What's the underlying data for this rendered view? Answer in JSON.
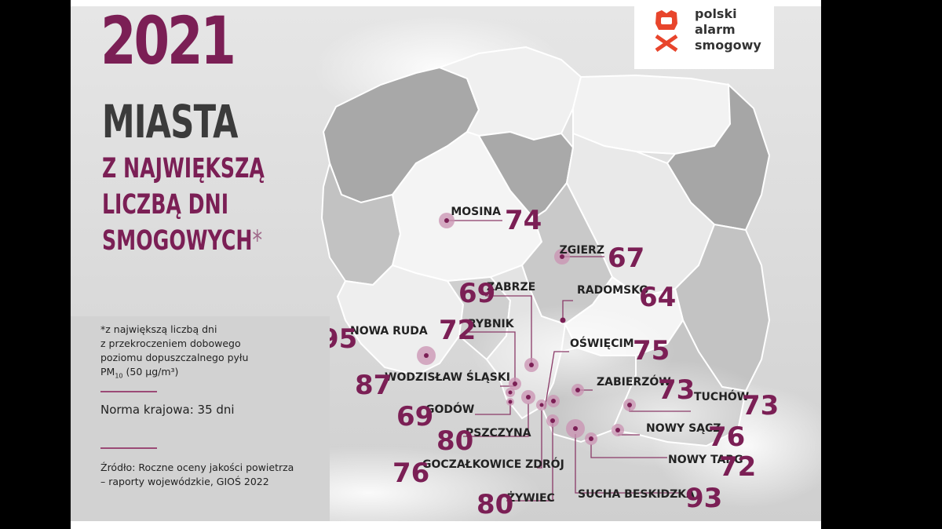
{
  "header": {
    "year": "2021",
    "title": "MIASTA",
    "subtitle_lines": [
      "Z NAJWIĘKSZĄ",
      "LICZBĄ DNI",
      "SMOGOWYCH"
    ],
    "asterisk": "*"
  },
  "logo": {
    "lines": [
      "polski",
      "alarm",
      "smogowy"
    ],
    "icon": "gas-mask-icon",
    "color": "#e8452c"
  },
  "footnote": {
    "line1": "*z największą liczbą dni",
    "line2": "z przekroczeniem dobowego",
    "line3": "poziomu dopuszczalnego pyłu",
    "pm": "PM",
    "pm_sub": "10",
    "limit": "(50 μg/m³)"
  },
  "norma": "Norma krajowa: 35 dni",
  "source": {
    "line1": "Źródło: Roczne oceny jakości powietrza",
    "line2": "– raporty wojewódzkie, GIOŚ 2022"
  },
  "colors": {
    "accent": "#7b1f55",
    "marker": "#b46a93",
    "region_light": "#f0f0f0",
    "region_mid": "#cfcfcf",
    "region_dark": "#a9a9a9"
  },
  "cities": [
    {
      "name": "MOSINA",
      "days": "74"
    },
    {
      "name": "ZGIERZ",
      "days": "67"
    },
    {
      "name": "ZABRZE",
      "days": "69"
    },
    {
      "name": "RADOMSKO",
      "days": "64"
    },
    {
      "name": "RYBNIK",
      "days": "72"
    },
    {
      "name": "NOWA RUDA",
      "days": "95"
    },
    {
      "name": "OŚWIĘCIM",
      "days": "75"
    },
    {
      "name": "WODZISŁAW ŚLĄSKI",
      "days": "87"
    },
    {
      "name": "ZABIERZÓW",
      "days": "73"
    },
    {
      "name": "TUCHÓW",
      "days": "73"
    },
    {
      "name": "GODÓW",
      "days": "69"
    },
    {
      "name": "NOWY SĄCZ",
      "days": "76"
    },
    {
      "name": "PSZCZYNA",
      "days": "80"
    },
    {
      "name": "NOWY TARG",
      "days": "72"
    },
    {
      "name": "GOCZAŁKOWICE ZDRÓJ",
      "days": "76"
    },
    {
      "name": "SUCHA BESKIDZKA",
      "days": "93"
    },
    {
      "name": "ŻYWIEC",
      "days": "80"
    }
  ]
}
